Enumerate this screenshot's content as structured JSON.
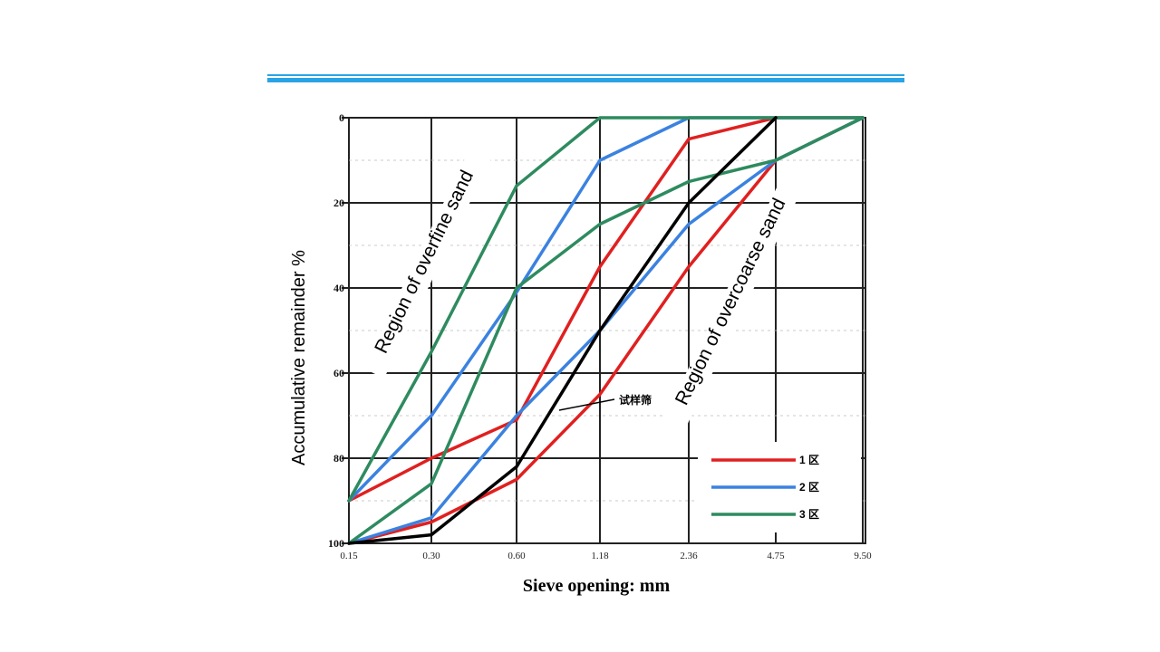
{
  "chart_data": {
    "type": "line",
    "xlabel": "Sieve opening: mm",
    "ylabel": "Accumulative remainder %",
    "x_categories": [
      "0.15",
      "0.30",
      "0.60",
      "1.18",
      "2.36",
      "4.75",
      "9.50"
    ],
    "y_ticks": [
      "0",
      "20",
      "40",
      "60",
      "80",
      "100"
    ],
    "ylim": [
      0,
      100
    ],
    "y_inverted": true,
    "grid": true,
    "legend_position": "bottom-right",
    "series": [
      {
        "name": "1 区",
        "color": "#e02020",
        "kind": "upper",
        "values": [
          90,
          80,
          71,
          35,
          5,
          0,
          0
        ]
      },
      {
        "name": "1 区",
        "color": "#e02020",
        "kind": "lower",
        "values": [
          100,
          95,
          85,
          65,
          35,
          10,
          0
        ]
      },
      {
        "name": "2 区",
        "color": "#3b82e0",
        "kind": "upper",
        "values": [
          90,
          70,
          41,
          10,
          0,
          0,
          0
        ]
      },
      {
        "name": "2 区",
        "color": "#3b82e0",
        "kind": "lower",
        "values": [
          100,
          94,
          70,
          50,
          25,
          10,
          0
        ]
      },
      {
        "name": "3 区",
        "color": "#2e8b5f",
        "kind": "upper",
        "values": [
          90,
          55,
          16,
          0,
          0,
          0,
          0
        ]
      },
      {
        "name": "3 区",
        "color": "#2e8b5f",
        "kind": "lower",
        "values": [
          100,
          86,
          40,
          25,
          15,
          10,
          0
        ]
      },
      {
        "name": "试样筛",
        "color": "#000000",
        "kind": "sample",
        "values": [
          100,
          98,
          82,
          50,
          20,
          0,
          null
        ]
      }
    ],
    "annotations": {
      "overfine": "Region of overfine sand",
      "overcoarse": "Region of overcoarse sand",
      "sample": "试样筛"
    },
    "legend": [
      {
        "label": "1 区",
        "color": "#e02020"
      },
      {
        "label": "2 区",
        "color": "#3b82e0"
      },
      {
        "label": "3 区",
        "color": "#2e8b5f"
      }
    ]
  }
}
